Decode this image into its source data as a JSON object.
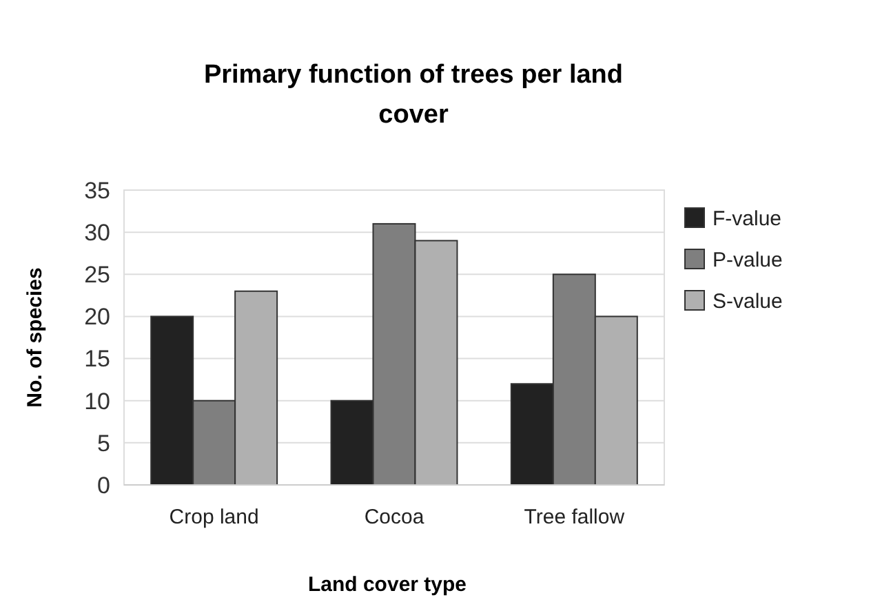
{
  "chart_data": {
    "type": "bar",
    "title": "Primary function of trees per land cover",
    "xlabel": "Land cover type",
    "ylabel": "No. of species",
    "categories": [
      "Crop land",
      "Cocoa",
      "Tree fallow"
    ],
    "series": [
      {
        "name": "F-value",
        "color": "#222222",
        "values": [
          20,
          10,
          12
        ]
      },
      {
        "name": "P-value",
        "color": "#7f7f7f",
        "values": [
          10,
          31,
          25
        ]
      },
      {
        "name": "S-value",
        "color": "#b0b0b0",
        "values": [
          23,
          29,
          20
        ]
      }
    ],
    "ylim": [
      0,
      35
    ],
    "yticks": [
      0,
      5,
      10,
      15,
      20,
      25,
      30,
      35
    ],
    "grid": "y",
    "legend": "right"
  }
}
